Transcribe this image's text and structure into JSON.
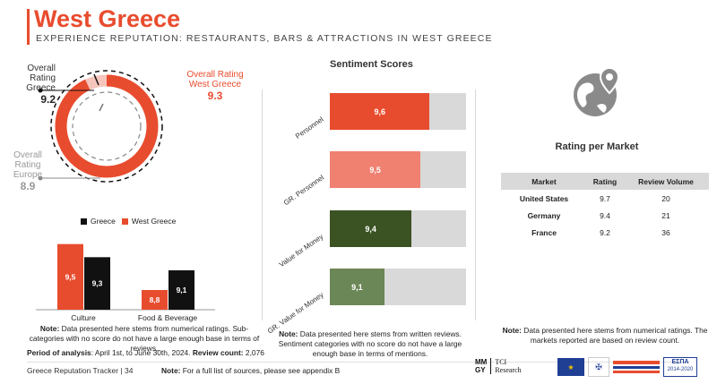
{
  "header": {
    "title": "West Greece",
    "subtitle": "EXPERIENCE REPUTATION: RESTAURANTS, BARS & ATTRACTIONS IN WEST GREECE"
  },
  "colors": {
    "accent": "#e84c2e",
    "dark": "#111111",
    "grey": "#d9d9d9"
  },
  "overall": {
    "greece_label_1": "Overall Rating",
    "greece_label_2": "Greece",
    "greece_value": "9.2",
    "west_label_1": "Overall Rating",
    "west_label_2": "West Greece",
    "west_value": "9.3",
    "europe_label_1": "Overall Rating",
    "europe_label_2": "Europe",
    "europe_value": "8.9"
  },
  "legend": {
    "greece": "Greece",
    "west": "West Greece"
  },
  "chart_data": [
    {
      "type": "bar",
      "categories": [
        "Culture",
        "Food & Beverage"
      ],
      "series": [
        {
          "name": "West Greece",
          "values": [
            9.5,
            8.8
          ],
          "labels": [
            "9,5",
            "8,8"
          ]
        },
        {
          "name": "Greece",
          "values": [
            9.3,
            9.1
          ],
          "labels": [
            "9,3",
            "9,1"
          ]
        }
      ],
      "ylim": [
        8.5,
        9.7
      ]
    },
    {
      "type": "bar",
      "title": "Sentiment Scores",
      "categories": [
        "Personnel",
        "GR. Personnel",
        "Value for Money",
        "GR. Value for Money"
      ],
      "values": [
        9.6,
        9.5,
        9.4,
        9.1
      ],
      "labels": [
        "9,6",
        "9,5",
        "9,4",
        "9,1"
      ],
      "colors": [
        "#e84c2e",
        "#f08070",
        "#3b5323",
        "#6b8757"
      ],
      "xlim": [
        8.5,
        10
      ]
    }
  ],
  "notes": {
    "left_bold": "Note:",
    "left_text": " Data presented here stems from numerical ratings. Sub-categories with no score do not have a large enough base in terms of reviews.",
    "period_bold": "Period of analysis",
    "period_text": ": April 1st, to June 30th, 2024. ",
    "review_bold": "Review count:",
    "review_text": " 2,076",
    "mid_bold": "Note:",
    "mid_text": " Data presented here stems from written reviews. Sentiment categories with no score do not have a large enough base in terms of mentions.",
    "right_bold": "Note:",
    "right_text": " Data presented here stems from  numerical ratings. The markets reported are based on review count."
  },
  "market": {
    "title": "Rating per Market",
    "headers": [
      "Market",
      "Rating",
      "Review Volume"
    ],
    "rows": [
      {
        "market": "United States",
        "rating": "9.7",
        "volume": "20"
      },
      {
        "market": "Germany",
        "rating": "9.4",
        "volume": "21"
      },
      {
        "market": "France",
        "rating": "9.2",
        "volume": "36"
      }
    ]
  },
  "footer": {
    "tracker": "Greece Reputation Tracker |  34",
    "note_bold": "Note:",
    "note_text": " For a full list of sources, please see appendix B",
    "logo_mm": "MM",
    "logo_gy": "GY",
    "logo_tci": "TCI",
    "logo_research": "Research",
    "espa": "ΕΣΠΑ",
    "espa_years": "2014-2020"
  }
}
